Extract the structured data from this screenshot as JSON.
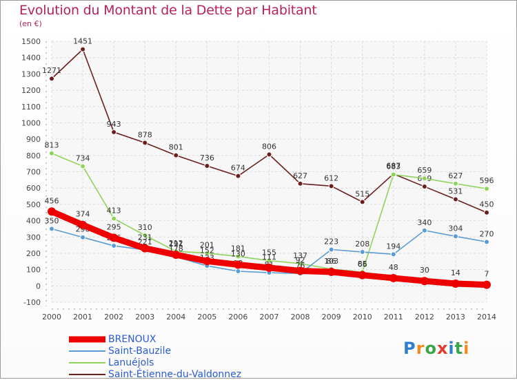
{
  "title": "Evolution du Montant de la Dette par Habitant",
  "subtitle": "(en €)",
  "logo": "Proxiti",
  "chart_data": {
    "type": "line",
    "x": [
      2000,
      2001,
      2002,
      2003,
      2004,
      2005,
      2006,
      2007,
      2008,
      2009,
      2010,
      2011,
      2012,
      2013,
      2014
    ],
    "ylim": [
      -100,
      1500
    ],
    "yticks": [
      -100,
      0,
      100,
      200,
      300,
      400,
      500,
      600,
      700,
      800,
      900,
      1000,
      1100,
      1200,
      1300,
      1400,
      1500
    ],
    "grid": true,
    "legend": "bottom-left",
    "series": [
      {
        "name": "Saint-Étienne-du-Valdonnez",
        "color": "#6b1e1e",
        "values": [
          1271,
          1451,
          943,
          878,
          801,
          736,
          674,
          806,
          627,
          612,
          515,
          687,
          609,
          531,
          450
        ]
      },
      {
        "name": "Lanuéjols",
        "color": "#8fd35a",
        "values": [
          813,
          734,
          413,
          310,
          212,
          201,
          181,
          155,
          137,
          103,
          85,
          683,
          659,
          627,
          596
        ]
      },
      {
        "name": "Saint-Bauzile",
        "color": "#5b9bd5",
        "values": [
          350,
          298,
          246,
          221,
          178,
          123,
          90,
          81,
          76,
          223,
          208,
          194,
          340,
          304,
          270
        ]
      },
      {
        "name": "BRENOUX",
        "color": "#ee0000",
        "values": [
          456,
          374,
          295,
          231,
          191,
          152,
          130,
          111,
          92,
          86,
          66,
          48,
          30,
          14,
          7
        ]
      }
    ],
    "legend_order": [
      "BRENOUX",
      "Saint-Bauzile",
      "Lanuéjols",
      "Saint-Étienne-du-Valdonnez"
    ]
  }
}
